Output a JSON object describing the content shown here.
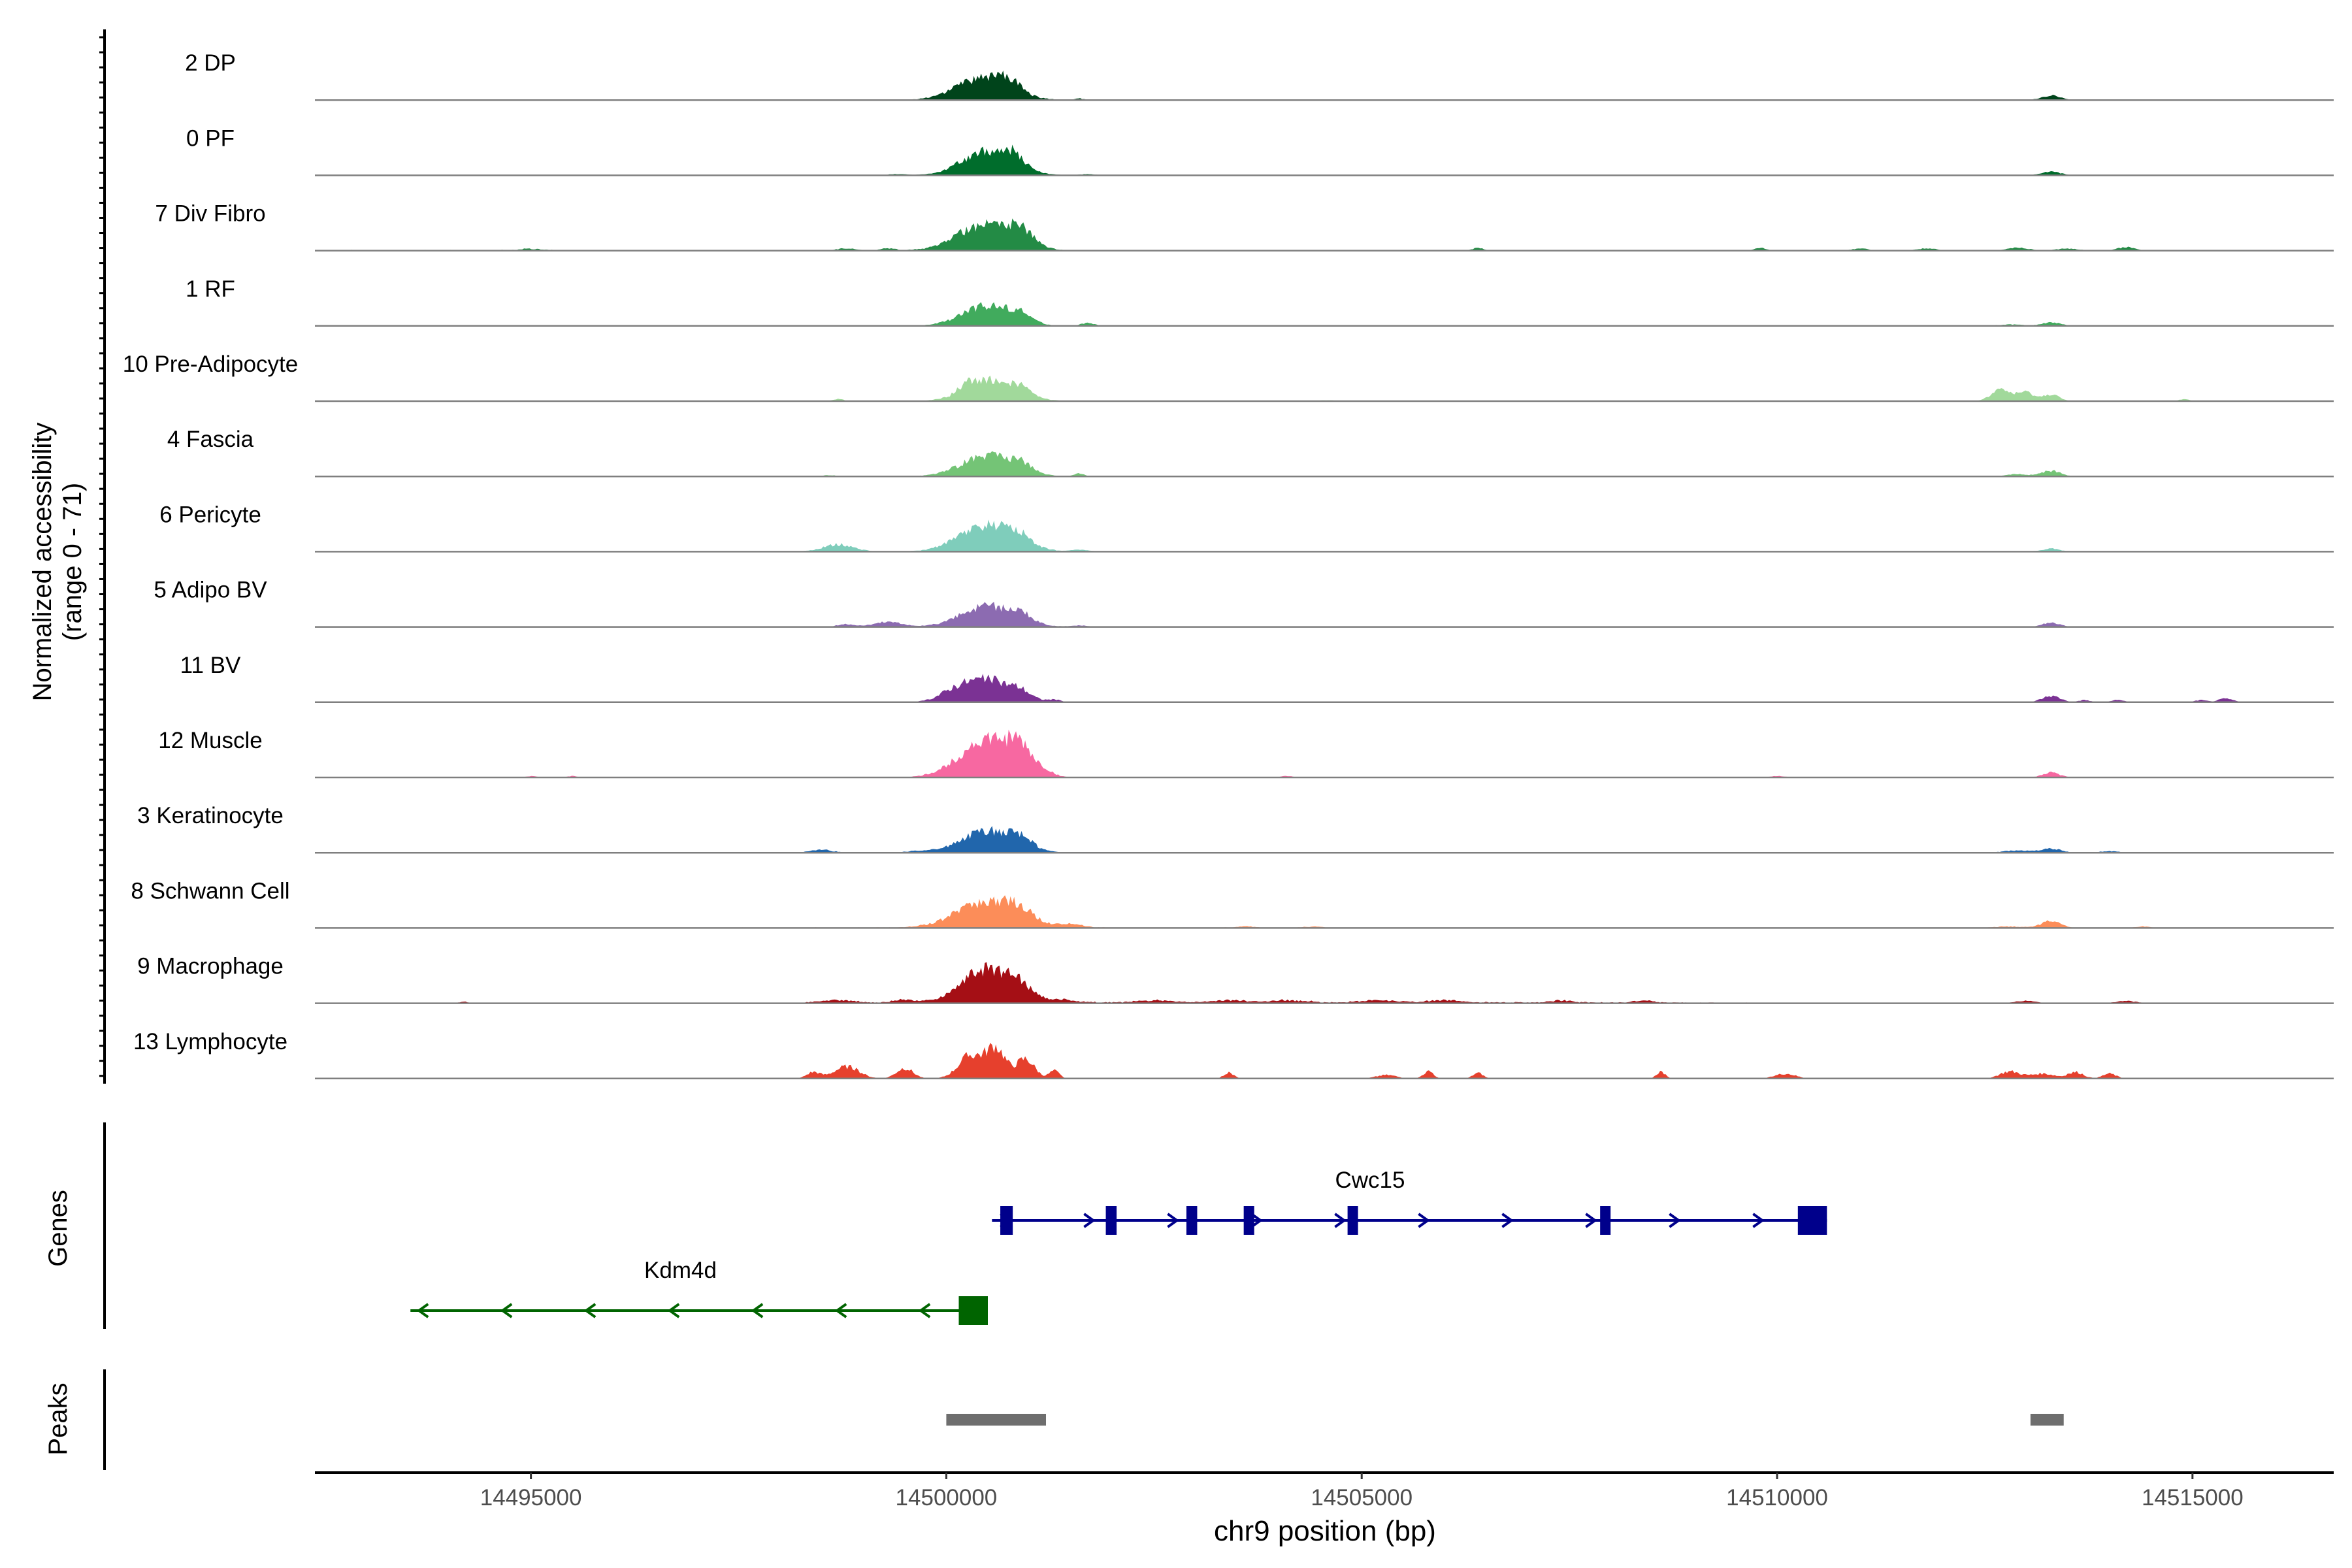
{
  "chart_data": {
    "type": "area",
    "description_title": "Coverage plot",
    "ylabel_line1": "Normalized accessibility",
    "ylabel_line2": "(range 0 - 71)",
    "xlabel": "chr9 position (bp)",
    "xlim": [
      14492400,
      14516700
    ],
    "xticks": [
      14495000,
      14500000,
      14505000,
      14510000,
      14515000
    ],
    "xtick_labels": [
      "14495000",
      "14500000",
      "14505000",
      "14510000",
      "14515000"
    ],
    "ylim": [
      0,
      71
    ],
    "tracks": [
      {
        "name": "2 DP",
        "color": "#00441b",
        "peaks": [
          [
            14500450,
            32,
            320
          ],
          [
            14500750,
            14,
            130
          ],
          [
            14501600,
            2,
            60
          ],
          [
            14513300,
            7,
            110
          ]
        ],
        "noise": [
          [
            14505000,
            0.4
          ]
        ]
      },
      {
        "name": "0 PF",
        "color": "#006d2c",
        "peaks": [
          [
            14500500,
            34,
            310
          ],
          [
            14500800,
            14,
            130
          ],
          [
            14499400,
            1.5,
            120
          ],
          [
            14501700,
            1.5,
            90
          ],
          [
            14513300,
            5,
            110
          ]
        ],
        "noise": [
          [
            14496000,
            0.3
          ],
          [
            14510000,
            0.4
          ]
        ]
      },
      {
        "name": "7 Div Fibro",
        "color": "#238b45",
        "peaks": [
          [
            14500450,
            36,
            320
          ],
          [
            14500900,
            22,
            160
          ],
          [
            14498800,
            3,
            110
          ],
          [
            14499300,
            3,
            80
          ],
          [
            14506400,
            4,
            60
          ],
          [
            14509800,
            4,
            70
          ],
          [
            14511000,
            3,
            90
          ],
          [
            14511800,
            3,
            120
          ],
          [
            14512900,
            4,
            130
          ],
          [
            14513500,
            3,
            130
          ],
          [
            14514200,
            5,
            100
          ],
          [
            14495000,
            2,
            140
          ]
        ],
        "noise": [
          [
            14493500,
            1
          ],
          [
            14503000,
            0.6
          ]
        ]
      },
      {
        "name": "1 RF",
        "color": "#41ab5d",
        "peaks": [
          [
            14500500,
            29,
            300
          ],
          [
            14500900,
            10,
            130
          ],
          [
            14501700,
            4,
            80
          ],
          [
            14513300,
            5,
            110
          ],
          [
            14512800,
            2,
            160
          ]
        ],
        "noise": []
      },
      {
        "name": "10 Pre-Adipocyte",
        "color": "#a1d99b",
        "peaks": [
          [
            14500550,
            30,
            300
          ],
          [
            14500250,
            10,
            100
          ],
          [
            14500900,
            8,
            110
          ],
          [
            14498700,
            3,
            60
          ],
          [
            14512700,
            16,
            120
          ],
          [
            14513000,
            12,
            100
          ],
          [
            14513300,
            10,
            90
          ],
          [
            14514900,
            3,
            60
          ],
          [
            14504600,
            1,
            120
          ]
        ],
        "noise": [
          [
            14503000,
            0.3
          ]
        ]
      },
      {
        "name": "4 Fascia",
        "color": "#74c476",
        "peaks": [
          [
            14500500,
            30,
            310
          ],
          [
            14500900,
            10,
            130
          ],
          [
            14501600,
            4,
            60
          ],
          [
            14513300,
            8,
            110
          ],
          [
            14512900,
            3,
            140
          ],
          [
            14498600,
            1.5,
            90
          ]
        ],
        "noise": [
          [
            14496000,
            0.3
          ],
          [
            14507000,
            0.4
          ]
        ]
      },
      {
        "name": "6 Pericyte",
        "color": "#7fcdbb",
        "peaks": [
          [
            14500500,
            38,
            330
          ],
          [
            14500900,
            10,
            130
          ],
          [
            14498700,
            10,
            180
          ],
          [
            14513300,
            4,
            100
          ],
          [
            14501600,
            3,
            90
          ]
        ],
        "noise": [
          [
            14495000,
            0.4
          ],
          [
            14505000,
            0.5
          ],
          [
            14511000,
            0.5
          ]
        ]
      },
      {
        "name": "5 Adipo BV",
        "color": "#8c6bb1",
        "peaks": [
          [
            14500500,
            30,
            310
          ],
          [
            14500900,
            10,
            130
          ],
          [
            14499300,
            7,
            160
          ],
          [
            14498800,
            4,
            100
          ],
          [
            14513300,
            6,
            100
          ],
          [
            14501600,
            2,
            90
          ]
        ],
        "noise": [
          [
            14496000,
            0.5
          ],
          [
            14505000,
            0.5
          ],
          [
            14510000,
            0.5
          ]
        ]
      },
      {
        "name": "11 BV",
        "color": "#7b3294",
        "peaks": [
          [
            14500500,
            32,
            300
          ],
          [
            14500100,
            10,
            180
          ],
          [
            14500900,
            8,
            110
          ],
          [
            14501300,
            3,
            80
          ],
          [
            14513300,
            9,
            110
          ],
          [
            14513700,
            3,
            70
          ],
          [
            14514100,
            3,
            80
          ],
          [
            14515100,
            3,
            70
          ],
          [
            14515400,
            5,
            90
          ]
        ],
        "noise": []
      },
      {
        "name": "12 Muscle",
        "color": "#f768a1",
        "peaks": [
          [
            14500500,
            55,
            330
          ],
          [
            14500900,
            26,
            140
          ],
          [
            14501200,
            5,
            90
          ],
          [
            14495000,
            2,
            60
          ],
          [
            14495500,
            2,
            60
          ],
          [
            14504100,
            2,
            70
          ],
          [
            14510000,
            2,
            90
          ],
          [
            14513300,
            7,
            100
          ]
        ],
        "noise": []
      },
      {
        "name": "3 Keratinocyte",
        "color": "#2166ac",
        "peaks": [
          [
            14500500,
            31,
            310
          ],
          [
            14500900,
            14,
            130
          ],
          [
            14498500,
            4,
            120
          ],
          [
            14499700,
            2,
            150
          ],
          [
            14513300,
            6,
            110
          ],
          [
            14512900,
            3,
            160
          ],
          [
            14514000,
            2,
            120
          ]
        ],
        "noise": [
          [
            14494000,
            0.8
          ],
          [
            14503000,
            0.6
          ],
          [
            14508000,
            0.6
          ]
        ]
      },
      {
        "name": "8 Schwann Cell",
        "color": "#fc8d59",
        "peaks": [
          [
            14500500,
            38,
            360
          ],
          [
            14500900,
            12,
            160
          ],
          [
            14501500,
            5,
            140
          ],
          [
            14513300,
            10,
            110
          ],
          [
            14512800,
            2,
            200
          ],
          [
            14514400,
            2,
            90
          ],
          [
            14503600,
            2,
            90
          ],
          [
            14504400,
            1.5,
            110
          ]
        ],
        "noise": [
          [
            14499000,
            0.8
          ],
          [
            14506000,
            0.6
          ]
        ]
      },
      {
        "name": "9 Macrophage",
        "color": "#a50f15",
        "peaks": [
          [
            14500500,
            48,
            300
          ],
          [
            14500900,
            13,
            140
          ],
          [
            14498700,
            4,
            200
          ],
          [
            14499500,
            4,
            150
          ],
          [
            14501400,
            4,
            150
          ],
          [
            14494200,
            2,
            60
          ],
          [
            14502500,
            3,
            200
          ],
          [
            14503400,
            3,
            200
          ],
          [
            14504100,
            3,
            200
          ],
          [
            14505200,
            3,
            200
          ],
          [
            14506000,
            3,
            200
          ],
          [
            14507400,
            3,
            120
          ],
          [
            14508400,
            3,
            120
          ],
          [
            14513000,
            3,
            120
          ],
          [
            14514200,
            3,
            120
          ]
        ],
        "noise": [
          [
            14502000,
            1.2
          ],
          [
            14505000,
            1
          ],
          [
            14507000,
            0.8
          ]
        ]
      },
      {
        "name": "13 Lymphocyte",
        "color": "#e6402d",
        "peaks": [
          [
            14500300,
            33,
            150
          ],
          [
            14500600,
            42,
            110
          ],
          [
            14500950,
            28,
            110
          ],
          [
            14501300,
            11,
            60
          ],
          [
            14498800,
            17,
            150
          ],
          [
            14498400,
            9,
            80
          ],
          [
            14499500,
            15,
            100
          ],
          [
            14503400,
            8,
            60
          ],
          [
            14505300,
            5,
            120
          ],
          [
            14505800,
            10,
            60
          ],
          [
            14506400,
            8,
            60
          ],
          [
            14508600,
            10,
            50
          ],
          [
            14510100,
            7,
            120
          ],
          [
            14512800,
            10,
            120
          ],
          [
            14513200,
            7,
            150
          ],
          [
            14513600,
            9,
            90
          ],
          [
            14514000,
            7,
            80
          ]
        ],
        "noise": []
      }
    ],
    "genes_label": "Genes",
    "genes": [
      {
        "name": "Cwc15",
        "strand": "+",
        "color": "#00008b",
        "start": 14500550,
        "end": 14510600,
        "exons": [
          [
            14500650,
            14500800
          ],
          [
            14501920,
            14502050
          ],
          [
            14502890,
            14503020
          ],
          [
            14503580,
            14503670
          ],
          [
            14504830,
            14504940
          ],
          [
            14507870,
            14507980
          ],
          [
            14510250,
            14510600
          ]
        ]
      },
      {
        "name": "Kdm4d",
        "strand": "-",
        "color": "#006400",
        "start": 14493550,
        "end": 14500500,
        "exons": [
          [
            14500150,
            14500500
          ]
        ]
      }
    ],
    "peaks_label": "Peaks",
    "peak_regions": [
      [
        14500000,
        14501200
      ],
      [
        14513050,
        14513450
      ]
    ],
    "peak_color": "#6e6e6e"
  }
}
